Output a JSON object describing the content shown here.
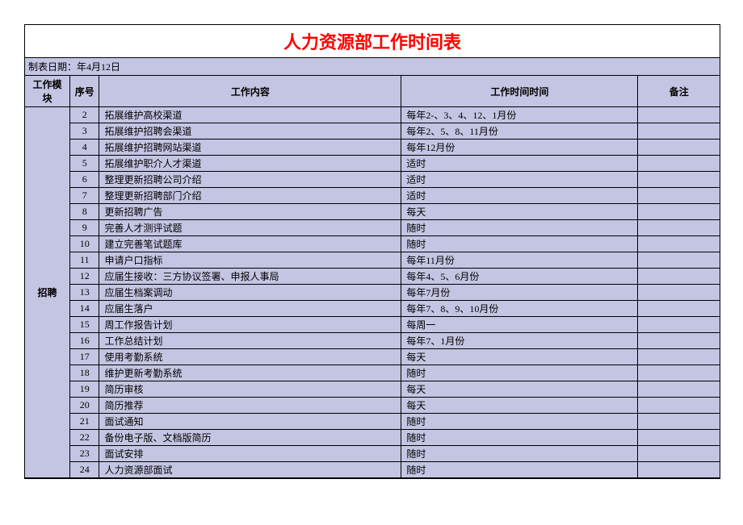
{
  "title": "人力资源部工作时间表",
  "date_label": "制表日期：年4月12日",
  "headers": {
    "module": "工作模块",
    "seq": "序号",
    "content": "工作内容",
    "time": "工作时间时间",
    "remark": "备注"
  },
  "module_name": "招聘",
  "rows": [
    {
      "seq": "2",
      "content": "拓展维护高校渠道",
      "time": "每年2-、3、4、12、1月份",
      "remark": ""
    },
    {
      "seq": "3",
      "content": "拓展维护招聘会渠道",
      "time": "每年2、5、8、11月份",
      "remark": ""
    },
    {
      "seq": "4",
      "content": "拓展维护招聘网站渠道",
      "time": "每年12月份",
      "remark": ""
    },
    {
      "seq": "5",
      "content": "拓展维护职介人才渠道",
      "time": "适时",
      "remark": ""
    },
    {
      "seq": "6",
      "content": "整理更新招聘公司介绍",
      "time": "适时",
      "remark": ""
    },
    {
      "seq": "7",
      "content": "整理更新招聘部门介绍",
      "time": "适时",
      "remark": ""
    },
    {
      "seq": "8",
      "content": "更新招聘广告",
      "time": "每天",
      "remark": ""
    },
    {
      "seq": "9",
      "content": "完善人才测评试题",
      "time": "随时",
      "remark": ""
    },
    {
      "seq": "10",
      "content": "建立完善笔试题库",
      "time": "随时",
      "remark": ""
    },
    {
      "seq": "11",
      "content": "申请户口指标",
      "time": "每年11月份",
      "remark": ""
    },
    {
      "seq": "12",
      "content": "应届生接收：三方协议签署、申报人事局",
      "time": "每年4、5、6月份",
      "remark": ""
    },
    {
      "seq": "13",
      "content": "应届生档案调动",
      "time": "每年7月份",
      "remark": ""
    },
    {
      "seq": "14",
      "content": "应届生落户",
      "time": "每年7、8、9、10月份",
      "remark": ""
    },
    {
      "seq": "15",
      "content": "周工作报告计划",
      "time": "每周一",
      "remark": ""
    },
    {
      "seq": "16",
      "content": "工作总结计划",
      "time": "每年7、1月份",
      "remark": ""
    },
    {
      "seq": "17",
      "content": "使用考勤系统",
      "time": "每天",
      "remark": ""
    },
    {
      "seq": "18",
      "content": "维护更新考勤系统",
      "time": "随时",
      "remark": ""
    },
    {
      "seq": "19",
      "content": "简历审核",
      "time": "每天",
      "remark": ""
    },
    {
      "seq": "20",
      "content": "简历推荐",
      "time": "每天",
      "remark": ""
    },
    {
      "seq": "21",
      "content": "面试通知",
      "time": "随时",
      "remark": ""
    },
    {
      "seq": "22",
      "content": "备份电子版、文档版简历",
      "time": "随时",
      "remark": ""
    },
    {
      "seq": "23",
      "content": "面试安排",
      "time": "随时",
      "remark": ""
    },
    {
      "seq": "24",
      "content": "人力资源部面试",
      "time": "随时",
      "remark": ""
    }
  ],
  "style": {
    "title_color": "#ff0000",
    "title_fontsize": 22,
    "cell_bg": "#c4c5e3",
    "border_color": "#000000",
    "body_fontsize": 12,
    "font_family": "SimSun"
  }
}
